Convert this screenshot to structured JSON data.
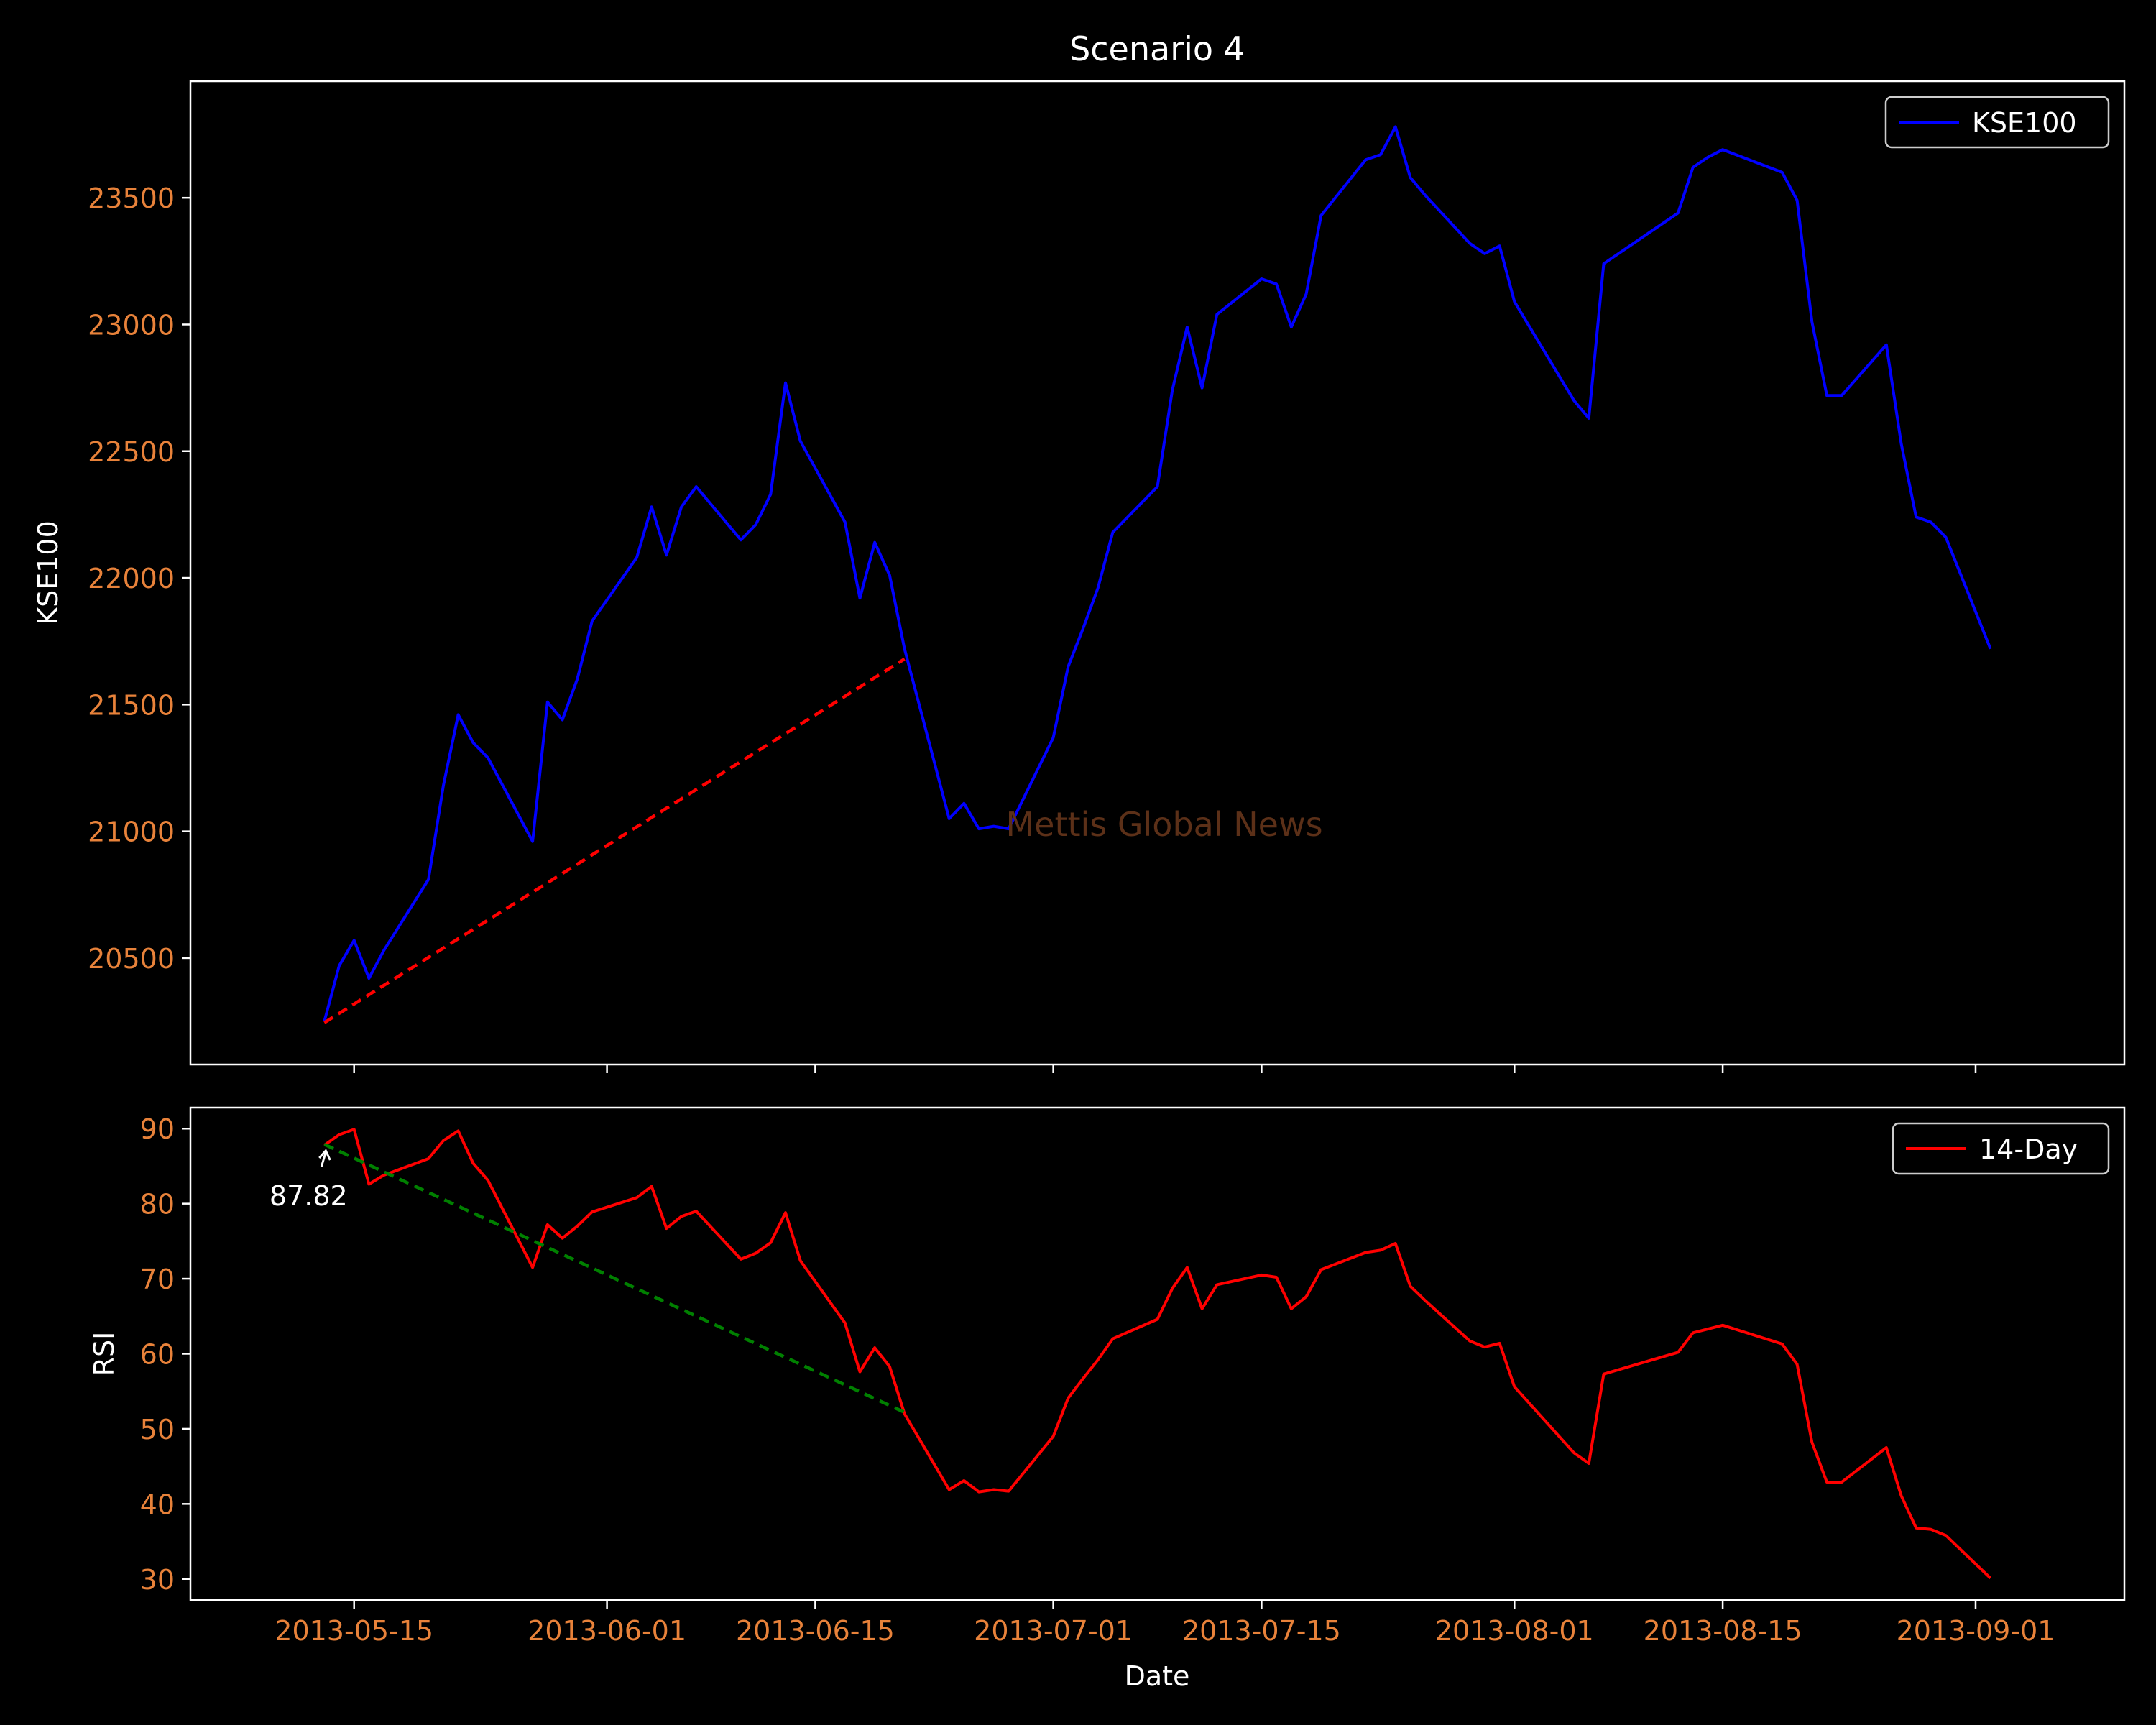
{
  "figure": {
    "title": "Scenario 4",
    "watermark": "Mettis Global News",
    "xlabel": "Date",
    "colors": {
      "background": "#000000",
      "axes": "#ffffff",
      "tick_text": "#e8823a",
      "watermark": "#5c3018"
    }
  },
  "chart_data": [
    {
      "type": "line",
      "ylabel": "KSE100",
      "xlim": [
        "2013-05-04",
        "2013-09-11"
      ],
      "ylim": [
        20080,
        23960
      ],
      "yticks": [
        20500,
        21000,
        21500,
        22000,
        22500,
        23000,
        23500
      ],
      "xticks": [
        "2013-05-15",
        "2013-06-01",
        "2013-06-15",
        "2013-07-01",
        "2013-07-15",
        "2013-08-01",
        "2013-08-15",
        "2013-09-01"
      ],
      "xtick_labels_visible": false,
      "legend": "top-right",
      "series": [
        {
          "name": "KSE100",
          "color": "#0000ff",
          "x": [
            "2013-05-13",
            "2013-05-14",
            "2013-05-15",
            "2013-05-16",
            "2013-05-17",
            "2013-05-20",
            "2013-05-21",
            "2013-05-22",
            "2013-05-23",
            "2013-05-24",
            "2013-05-27",
            "2013-05-28",
            "2013-05-29",
            "2013-05-30",
            "2013-05-31",
            "2013-06-03",
            "2013-06-04",
            "2013-06-05",
            "2013-06-06",
            "2013-06-07",
            "2013-06-10",
            "2013-06-11",
            "2013-06-12",
            "2013-06-13",
            "2013-06-14",
            "2013-06-17",
            "2013-06-18",
            "2013-06-19",
            "2013-06-20",
            "2013-06-21",
            "2013-06-24",
            "2013-06-25",
            "2013-06-26",
            "2013-06-27",
            "2013-06-28",
            "2013-07-01",
            "2013-07-02",
            "2013-07-03",
            "2013-07-04",
            "2013-07-05",
            "2013-07-08",
            "2013-07-09",
            "2013-07-10",
            "2013-07-11",
            "2013-07-12",
            "2013-07-15",
            "2013-07-16",
            "2013-07-17",
            "2013-07-18",
            "2013-07-19",
            "2013-07-22",
            "2013-07-23",
            "2013-07-24",
            "2013-07-25",
            "2013-07-26",
            "2013-07-29",
            "2013-07-30",
            "2013-07-31",
            "2013-08-01",
            "2013-08-05",
            "2013-08-06",
            "2013-08-07",
            "2013-08-12",
            "2013-08-13",
            "2013-08-14",
            "2013-08-15",
            "2013-08-19",
            "2013-08-20",
            "2013-08-21",
            "2013-08-22",
            "2013-08-23",
            "2013-08-26",
            "2013-08-27",
            "2013-08-28",
            "2013-08-29",
            "2013-08-30",
            "2013-09-02"
          ],
          "y": [
            20250,
            20470,
            20570,
            20420,
            20530,
            20810,
            21180,
            21460,
            21350,
            21290,
            20960,
            21510,
            21440,
            21600,
            21830,
            22080,
            22280,
            22090,
            22280,
            22360,
            22150,
            22210,
            22330,
            22770,
            22540,
            22220,
            21920,
            22140,
            22010,
            21720,
            21050,
            21110,
            21010,
            21020,
            21010,
            21370,
            21650,
            21800,
            21960,
            22180,
            22360,
            22740,
            22990,
            22750,
            23040,
            23180,
            23160,
            22990,
            23120,
            23430,
            23650,
            23670,
            23780,
            23580,
            23510,
            23320,
            23280,
            23310,
            23090,
            22700,
            22630,
            23240,
            23440,
            23620,
            23660,
            23690,
            23600,
            23490,
            23010,
            22720,
            22720,
            22920,
            22530,
            22240,
            22220,
            22160,
            21720
          ]
        }
      ],
      "trendline": {
        "color": "#ff0000",
        "style": "dashed",
        "x": [
          "2013-05-13",
          "2013-06-21"
        ],
        "y": [
          20245,
          21680
        ]
      }
    },
    {
      "type": "line",
      "ylabel": "RSI",
      "xlabel": "Date",
      "xlim": [
        "2013-05-04",
        "2013-09-11"
      ],
      "ylim": [
        27.2,
        92.8
      ],
      "yticks": [
        30,
        40,
        50,
        60,
        70,
        80,
        90
      ],
      "xticks": [
        "2013-05-15",
        "2013-06-01",
        "2013-06-15",
        "2013-07-01",
        "2013-07-15",
        "2013-08-01",
        "2013-08-15",
        "2013-09-01"
      ],
      "legend": "top-right",
      "series": [
        {
          "name": "14-Day",
          "color": "#ff0000",
          "x": [
            "2013-05-13",
            "2013-05-14",
            "2013-05-15",
            "2013-05-16",
            "2013-05-17",
            "2013-05-20",
            "2013-05-21",
            "2013-05-22",
            "2013-05-23",
            "2013-05-24",
            "2013-05-27",
            "2013-05-28",
            "2013-05-29",
            "2013-05-30",
            "2013-05-31",
            "2013-06-03",
            "2013-06-04",
            "2013-06-05",
            "2013-06-06",
            "2013-06-07",
            "2013-06-10",
            "2013-06-11",
            "2013-06-12",
            "2013-06-13",
            "2013-06-14",
            "2013-06-17",
            "2013-06-18",
            "2013-06-19",
            "2013-06-20",
            "2013-06-21",
            "2013-06-24",
            "2013-06-25",
            "2013-06-26",
            "2013-06-27",
            "2013-06-28",
            "2013-07-01",
            "2013-07-02",
            "2013-07-03",
            "2013-07-04",
            "2013-07-05",
            "2013-07-08",
            "2013-07-09",
            "2013-07-10",
            "2013-07-11",
            "2013-07-12",
            "2013-07-15",
            "2013-07-16",
            "2013-07-17",
            "2013-07-18",
            "2013-07-19",
            "2013-07-22",
            "2013-07-23",
            "2013-07-24",
            "2013-07-25",
            "2013-07-26",
            "2013-07-29",
            "2013-07-30",
            "2013-07-31",
            "2013-08-01",
            "2013-08-05",
            "2013-08-06",
            "2013-08-07",
            "2013-08-12",
            "2013-08-13",
            "2013-08-14",
            "2013-08-15",
            "2013-08-19",
            "2013-08-20",
            "2013-08-21",
            "2013-08-22",
            "2013-08-23",
            "2013-08-26",
            "2013-08-27",
            "2013-08-28",
            "2013-08-29",
            "2013-08-30",
            "2013-09-02"
          ],
          "y": [
            87.8,
            89.2,
            89.9,
            82.6,
            83.8,
            86.0,
            88.4,
            89.7,
            85.4,
            83.1,
            71.5,
            77.2,
            75.4,
            77.0,
            78.9,
            80.8,
            82.3,
            76.7,
            78.3,
            79.0,
            72.6,
            73.4,
            74.8,
            78.8,
            72.4,
            64.1,
            57.6,
            60.8,
            58.3,
            52.0,
            41.9,
            43.1,
            41.6,
            41.9,
            41.7,
            49.0,
            54.1,
            56.7,
            59.2,
            62.0,
            64.6,
            68.7,
            71.5,
            66.0,
            69.2,
            70.5,
            70.2,
            66.0,
            67.6,
            71.2,
            73.5,
            73.8,
            74.7,
            69.0,
            67.1,
            61.7,
            60.9,
            61.4,
            55.6,
            46.8,
            45.4,
            57.3,
            60.2,
            62.8,
            63.3,
            63.8,
            61.3,
            58.6,
            48.2,
            42.9,
            42.9,
            47.5,
            41.1,
            36.8,
            36.6,
            35.8,
            30.1
          ]
        }
      ],
      "trendline": {
        "color": "#008000",
        "style": "dashed",
        "x": [
          "2013-05-13",
          "2013-06-21"
        ],
        "y": [
          87.9,
          52.2
        ]
      },
      "annotation": {
        "text": "87.82",
        "x": "2013-05-13",
        "y": 87.82
      }
    }
  ]
}
